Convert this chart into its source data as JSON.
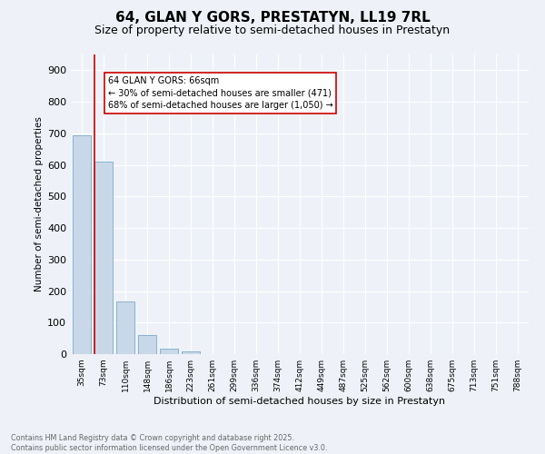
{
  "title": "64, GLAN Y GORS, PRESTATYN, LL19 7RL",
  "subtitle": "Size of property relative to semi-detached houses in Prestatyn",
  "xlabel": "Distribution of semi-detached houses by size in Prestatyn",
  "ylabel": "Number of semi-detached properties",
  "bin_labels": [
    "35sqm",
    "73sqm",
    "110sqm",
    "148sqm",
    "186sqm",
    "223sqm",
    "261sqm",
    "299sqm",
    "336sqm",
    "374sqm",
    "412sqm",
    "449sqm",
    "487sqm",
    "525sqm",
    "562sqm",
    "600sqm",
    "638sqm",
    "675sqm",
    "713sqm",
    "751sqm",
    "788sqm"
  ],
  "bar_values": [
    693,
    611,
    168,
    61,
    17,
    8,
    0,
    0,
    0,
    0,
    0,
    0,
    0,
    0,
    0,
    0,
    0,
    0,
    0,
    0,
    0
  ],
  "bar_color": "#c8d8e8",
  "bar_edge_color": "#7aaac8",
  "background_color": "#eef2f8",
  "grid_color": "#ffffff",
  "vline_color": "#cc0000",
  "annotation_text": "64 GLAN Y GORS: 66sqm\n← 30% of semi-detached houses are smaller (471)\n68% of semi-detached houses are larger (1,050) →",
  "annotation_box_color": "#ffffff",
  "annotation_box_edgecolor": "#cc0000",
  "ylim": [
    0,
    950
  ],
  "yticks": [
    0,
    100,
    200,
    300,
    400,
    500,
    600,
    700,
    800,
    900
  ],
  "footer_text": "Contains HM Land Registry data © Crown copyright and database right 2025.\nContains public sector information licensed under the Open Government Licence v3.0.",
  "title_fontsize": 11,
  "subtitle_fontsize": 9
}
